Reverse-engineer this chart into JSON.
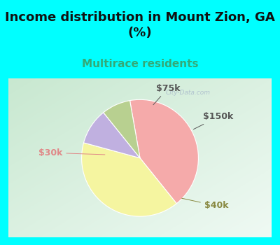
{
  "title": "Income distribution in Mount Zion, GA\n(%)",
  "subtitle": "Multirace residents",
  "title_color": "#111111",
  "subtitle_color": "#33aa77",
  "title_fontsize": 13,
  "subtitle_fontsize": 11,
  "slices": [
    {
      "label": "$30k",
      "value": 42,
      "color": "#f5aaaa",
      "label_color": "#e08080"
    },
    {
      "label": "$40k",
      "value": 40,
      "color": "#f5f5a0",
      "label_color": "#888840"
    },
    {
      "label": "$75k",
      "value": 10,
      "color": "#c0b0e0",
      "label_color": "#7060a0"
    },
    {
      "label": "$150k",
      "value": 8,
      "color": "#b8d090",
      "label_color": "#607040"
    }
  ],
  "bg_color": "#00ffff",
  "chart_bg_color_tl": "#c8e8d0",
  "chart_bg_color_br": "#e8f8f0",
  "watermark": "City-Data.com",
  "watermark_color": "#aabbcc",
  "figsize": [
    4.0,
    3.5
  ],
  "dpi": 100,
  "start_angle": 100
}
